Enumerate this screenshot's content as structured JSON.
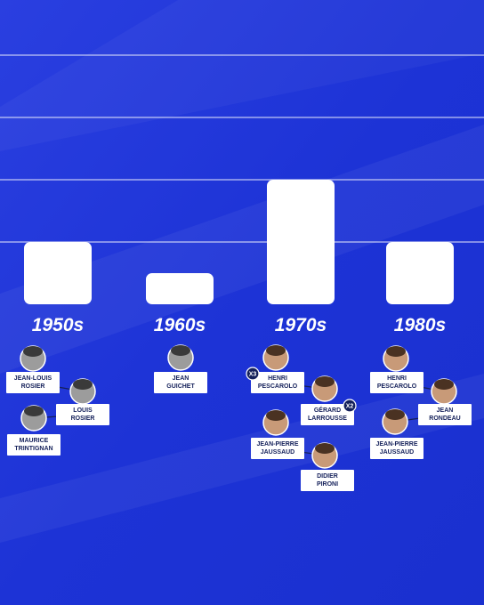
{
  "chart_data": {
    "type": "bar",
    "categories": [
      "1950s",
      "1960s",
      "1970s",
      "1980s"
    ],
    "values": [
      1,
      0.5,
      2,
      1
    ],
    "color": "#ffffff",
    "ylim": [
      0,
      4
    ],
    "yticks": [
      1,
      2,
      3,
      4
    ],
    "grid": true,
    "drivers": [
      [
        {
          "name": [
            "JEAN-LOUIS",
            "ROSIER"
          ]
        },
        {
          "name": [
            "LOUIS",
            "ROSIER"
          ]
        },
        {
          "name": [
            "MAURICE",
            "TRINTIGNAN"
          ]
        }
      ],
      [
        {
          "name": [
            "JEAN",
            "GUICHET"
          ]
        }
      ],
      [
        {
          "name": [
            "HENRI",
            "PESCAROLO"
          ],
          "badge": "X3"
        },
        {
          "name": [
            "GÉRARD",
            "LARROUSSE"
          ],
          "badge": "X2"
        },
        {
          "name": [
            "JEAN-PIERRE",
            "JAUSSAUD"
          ]
        },
        {
          "name": [
            "DIDIER",
            "PIRONI"
          ]
        }
      ],
      [
        {
          "name": [
            "HENRI",
            "PESCAROLO"
          ]
        },
        {
          "name": [
            "JEAN",
            "RONDEAU"
          ]
        },
        {
          "name": [
            "JEAN-PIERRE",
            "JAUSSAUD"
          ]
        }
      ]
    ]
  }
}
